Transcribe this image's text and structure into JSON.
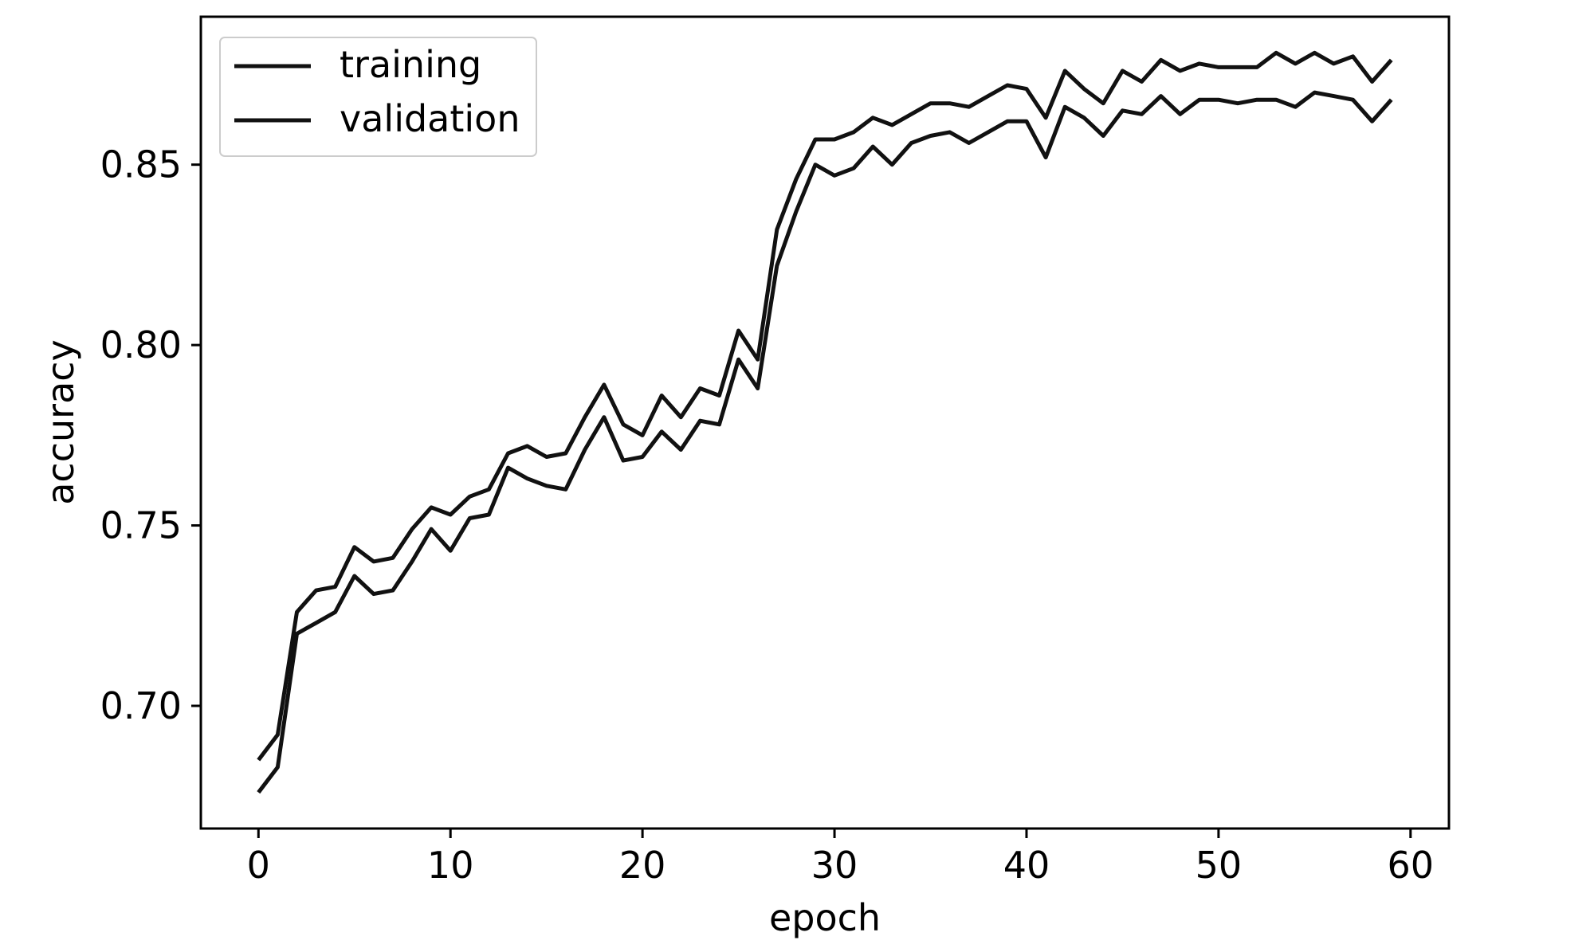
{
  "chart_data": {
    "type": "line",
    "title": "",
    "xlabel": "epoch",
    "ylabel": "accuracy",
    "xlim": [
      -3,
      62
    ],
    "ylim": [
      0.666,
      0.891
    ],
    "xticks": [
      0,
      10,
      20,
      30,
      40,
      50,
      60
    ],
    "xtick_labels": [
      "0",
      "10",
      "20",
      "30",
      "40",
      "50",
      "60"
    ],
    "yticks": [
      0.7,
      0.75,
      0.8,
      0.85
    ],
    "ytick_labels": [
      "0.70",
      "0.75",
      "0.80",
      "0.85"
    ],
    "grid": false,
    "legend_position": "upper left",
    "x": [
      0,
      1,
      2,
      3,
      4,
      5,
      6,
      7,
      8,
      9,
      10,
      11,
      12,
      13,
      14,
      15,
      16,
      17,
      18,
      19,
      20,
      21,
      22,
      23,
      24,
      25,
      26,
      27,
      28,
      29,
      30,
      31,
      32,
      33,
      34,
      35,
      36,
      37,
      38,
      39,
      40,
      41,
      42,
      43,
      44,
      45,
      46,
      47,
      48,
      49,
      50,
      51,
      52,
      53,
      54,
      55,
      56,
      57,
      58,
      59
    ],
    "series": [
      {
        "name": "training",
        "color": "#111111",
        "values": [
          0.685,
          0.692,
          0.726,
          0.732,
          0.733,
          0.744,
          0.74,
          0.741,
          0.749,
          0.755,
          0.753,
          0.758,
          0.76,
          0.77,
          0.772,
          0.769,
          0.77,
          0.78,
          0.789,
          0.778,
          0.775,
          0.786,
          0.78,
          0.788,
          0.786,
          0.804,
          0.796,
          0.832,
          0.846,
          0.857,
          0.857,
          0.859,
          0.863,
          0.861,
          0.864,
          0.867,
          0.867,
          0.866,
          0.869,
          0.872,
          0.871,
          0.863,
          0.876,
          0.871,
          0.867,
          0.876,
          0.873,
          0.879,
          0.876,
          0.878,
          0.877,
          0.877,
          0.877,
          0.881,
          0.878,
          0.881,
          0.878,
          0.88,
          0.873,
          0.879
        ]
      },
      {
        "name": "validation",
        "color": "#111111",
        "values": [
          0.676,
          0.683,
          0.72,
          0.723,
          0.726,
          0.736,
          0.731,
          0.732,
          0.74,
          0.749,
          0.743,
          0.752,
          0.753,
          0.766,
          0.763,
          0.761,
          0.76,
          0.771,
          0.78,
          0.768,
          0.769,
          0.776,
          0.771,
          0.779,
          0.778,
          0.796,
          0.788,
          0.822,
          0.837,
          0.85,
          0.847,
          0.849,
          0.855,
          0.85,
          0.856,
          0.858,
          0.859,
          0.856,
          0.859,
          0.862,
          0.862,
          0.852,
          0.866,
          0.863,
          0.858,
          0.865,
          0.864,
          0.869,
          0.864,
          0.868,
          0.868,
          0.867,
          0.868,
          0.868,
          0.866,
          0.87,
          0.869,
          0.868,
          0.862,
          0.868
        ]
      }
    ]
  }
}
